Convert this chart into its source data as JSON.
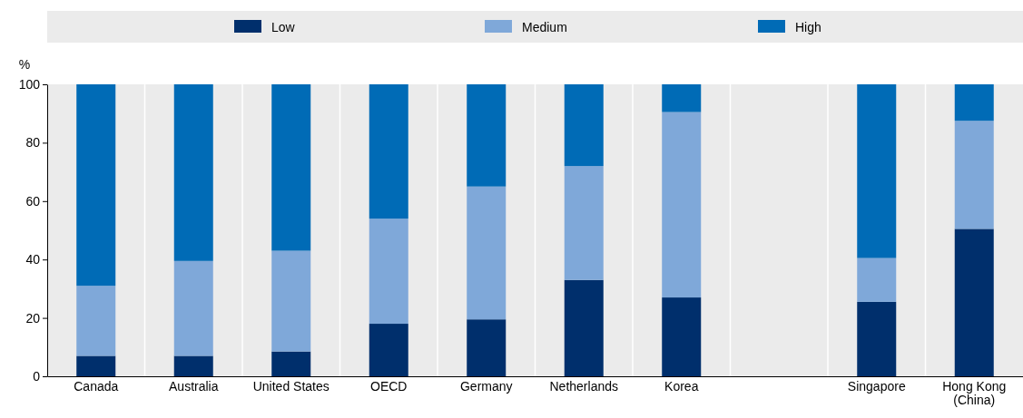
{
  "chart_data": {
    "type": "bar",
    "stacked": true,
    "ylabel": "%",
    "categories": [
      "Canada",
      "Australia",
      "United States",
      "OECD",
      "Germany",
      "Netherlands",
      "Korea",
      null,
      "Singapore",
      "Hong Kong (China)"
    ],
    "series": [
      {
        "name": "Low",
        "color": "#002f6c",
        "values": [
          7,
          7,
          8.5,
          18,
          19.5,
          33,
          27,
          null,
          25.5,
          50.5
        ]
      },
      {
        "name": "Medium",
        "color": "#7fa8d9",
        "values": [
          24,
          32.5,
          34.5,
          36,
          45.5,
          39,
          63.5,
          null,
          15,
          37
        ]
      },
      {
        "name": "High",
        "color": "#006bb6",
        "values": [
          69,
          60.5,
          57,
          46,
          35,
          28,
          9.5,
          null,
          59.5,
          12.5
        ]
      }
    ],
    "ylim": [
      0,
      100
    ],
    "yticks": [
      0,
      20,
      40,
      60,
      80,
      100
    ],
    "legend": "top"
  }
}
